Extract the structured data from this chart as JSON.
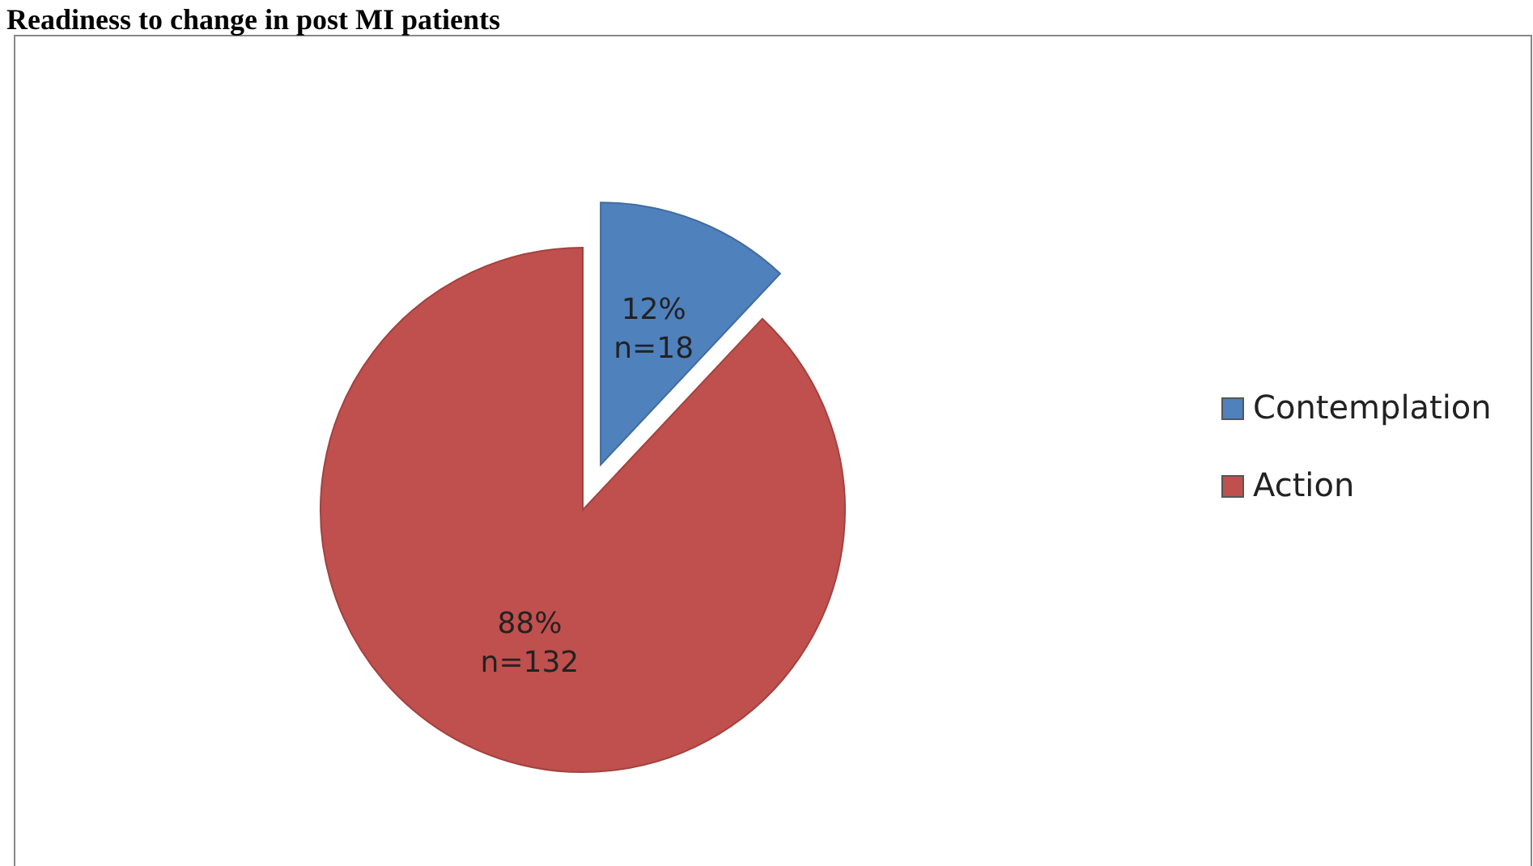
{
  "chart_data": {
    "type": "pie",
    "title": "Readiness to change in post MI patients",
    "categories": [
      "Contemplation",
      "Action"
    ],
    "values": [
      12,
      88
    ],
    "colors": [
      "#4f81bd",
      "#c0504d"
    ],
    "value_labels": [
      "12%\nn=18",
      "88%\nn=132"
    ],
    "legend": "right"
  }
}
